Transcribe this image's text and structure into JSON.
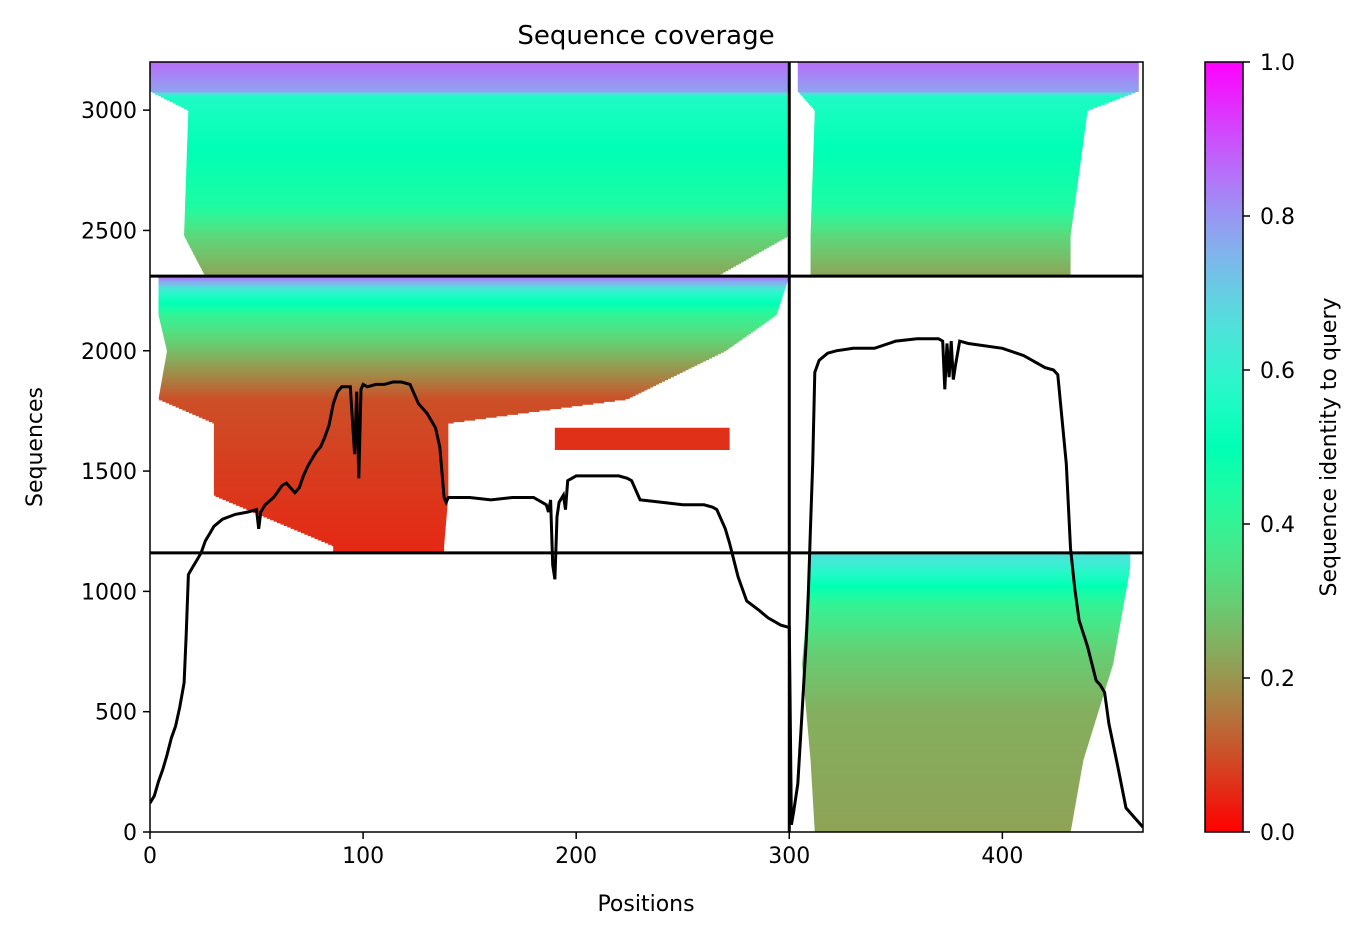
{
  "chart_data": {
    "type": "heatmap",
    "title": "Sequence coverage",
    "xlabel": "Positions",
    "ylabel": "Sequences",
    "xlim": [
      0,
      466
    ],
    "ylim": [
      0,
      3200
    ],
    "x_ticks": [
      "0",
      "100",
      "200",
      "300",
      "400"
    ],
    "x_tick_values": [
      0,
      100,
      200,
      300,
      400
    ],
    "y_ticks": [
      "0",
      "500",
      "1000",
      "1500",
      "2000",
      "2500",
      "3000"
    ],
    "y_tick_values": [
      0,
      500,
      1000,
      1500,
      2000,
      2500,
      3000
    ],
    "colorbar": {
      "label": "Sequence identity to query",
      "range": [
        0.0,
        1.0
      ],
      "ticks": [
        "0.0",
        "0.2",
        "0.4",
        "0.6",
        "0.8",
        "1.0"
      ],
      "tick_values": [
        0.0,
        0.2,
        0.4,
        0.6,
        0.8,
        1.0
      ],
      "colormap": "rainbow_r"
    },
    "chain_boundaries": {
      "x": [
        300
      ],
      "y": [
        1160,
        2310
      ]
    },
    "blocks": [
      {
        "name": "chain A / group 3",
        "x_range": [
          0,
          300
        ],
        "y_range": [
          2310,
          3200
        ],
        "gradient": [
          [
            2310,
            0.22
          ],
          [
            2480,
            0.32
          ],
          [
            2600,
            0.44
          ],
          [
            3060,
            0.56
          ],
          [
            3080,
            0.78
          ],
          [
            3200,
            0.86
          ]
        ],
        "span": [
          [
            2310,
            26,
            266
          ],
          [
            2480,
            16,
            300
          ],
          [
            3000,
            18,
            300
          ],
          [
            3080,
            0,
            300
          ]
        ]
      },
      {
        "name": "chain B / group 3",
        "x_range": [
          300,
          466
        ],
        "y_range": [
          2310,
          3200
        ],
        "gradient": [
          [
            2310,
            0.22
          ],
          [
            2480,
            0.32
          ],
          [
            2600,
            0.44
          ],
          [
            3060,
            0.56
          ],
          [
            3080,
            0.78
          ],
          [
            3200,
            0.86
          ]
        ],
        "span": [
          [
            2310,
            310,
            432
          ],
          [
            2480,
            310,
            432
          ],
          [
            3000,
            312,
            440
          ],
          [
            3080,
            304,
            464
          ]
        ]
      },
      {
        "name": "chain A / group 2",
        "x_range": [
          0,
          300
        ],
        "y_range": [
          1160,
          2310
        ],
        "gradient": [
          [
            1160,
            0.05
          ],
          [
            1800,
            0.1
          ],
          [
            1950,
            0.22
          ],
          [
            2150,
            0.4
          ],
          [
            2250,
            0.6
          ],
          [
            2310,
            0.86
          ]
        ],
        "span": [
          [
            1190,
            86,
            138
          ],
          [
            1400,
            30,
            140
          ],
          [
            1700,
            30,
            140
          ],
          [
            1800,
            4,
            224
          ],
          [
            2000,
            8,
            270
          ],
          [
            2150,
            4,
            294
          ],
          [
            2310,
            4,
            300
          ]
        ]
      },
      {
        "name": "chain A / group 2 (secondary)",
        "x_range": [
          0,
          300
        ],
        "y_range": [
          1590,
          1680
        ],
        "gradient": [
          [
            1590,
            0.06
          ],
          [
            1680,
            0.06
          ]
        ],
        "span": [
          [
            1590,
            190,
            272
          ],
          [
            1680,
            190,
            272
          ]
        ]
      },
      {
        "name": "chain B / group 1",
        "x_range": [
          300,
          466
        ],
        "y_range": [
          0,
          1160
        ],
        "gradient": [
          [
            0,
            0.22
          ],
          [
            500,
            0.24
          ],
          [
            750,
            0.3
          ],
          [
            950,
            0.4
          ],
          [
            1100,
            0.6
          ],
          [
            1160,
            0.66
          ]
        ],
        "span": [
          [
            0,
            312,
            432
          ],
          [
            300,
            310,
            438
          ],
          [
            700,
            306,
            452
          ],
          [
            1100,
            310,
            460
          ]
        ]
      }
    ],
    "coverage_line": {
      "x": [
        0,
        2,
        4,
        6,
        8,
        10,
        12,
        14,
        16,
        17,
        18,
        20,
        22,
        24,
        26,
        28,
        30,
        34,
        40,
        46,
        50,
        51,
        52,
        54,
        58,
        62,
        64,
        66,
        68,
        70,
        72,
        74,
        76,
        78,
        80,
        82,
        84,
        86,
        88,
        90,
        94,
        96,
        97,
        98,
        99,
        100,
        102,
        106,
        110,
        114,
        118,
        122,
        126,
        130,
        134,
        136,
        138,
        139,
        140,
        150,
        160,
        170,
        180,
        186,
        187,
        188,
        189,
        190,
        191,
        192,
        194,
        195,
        196,
        198,
        200,
        210,
        220,
        224,
        226,
        230,
        240,
        250,
        260,
        264,
        266,
        268,
        270,
        272,
        276,
        280,
        286,
        290,
        296,
        300,
        301,
        302,
        304,
        306,
        308,
        309,
        310,
        311,
        312,
        314,
        318,
        322,
        330,
        340,
        350,
        360,
        370,
        372,
        373,
        374,
        375,
        376,
        377,
        378,
        380,
        384,
        400,
        410,
        420,
        424,
        426,
        430,
        432,
        434,
        436,
        440,
        444,
        446,
        448,
        450,
        454,
        458,
        462,
        466
      ],
      "y": [
        120,
        150,
        210,
        260,
        320,
        390,
        440,
        520,
        620,
        820,
        1070,
        1100,
        1130,
        1160,
        1210,
        1240,
        1270,
        1300,
        1320,
        1330,
        1340,
        1260,
        1330,
        1360,
        1390,
        1440,
        1450,
        1430,
        1410,
        1430,
        1480,
        1520,
        1550,
        1580,
        1600,
        1640,
        1690,
        1780,
        1830,
        1850,
        1850,
        1570,
        1830,
        1470,
        1840,
        1860,
        1850,
        1860,
        1860,
        1870,
        1870,
        1860,
        1780,
        1740,
        1680,
        1600,
        1390,
        1370,
        1390,
        1390,
        1380,
        1390,
        1390,
        1360,
        1330,
        1380,
        1110,
        1050,
        1310,
        1370,
        1400,
        1340,
        1460,
        1470,
        1480,
        1480,
        1480,
        1470,
        1460,
        1380,
        1370,
        1360,
        1360,
        1350,
        1340,
        1300,
        1260,
        1200,
        1060,
        960,
        920,
        890,
        860,
        850,
        30,
        80,
        200,
        500,
        800,
        1000,
        1280,
        1530,
        1910,
        1960,
        1990,
        2000,
        2010,
        2010,
        2040,
        2050,
        2050,
        2040,
        1840,
        2030,
        1890,
        2040,
        1880,
        1940,
        2040,
        2030,
        2010,
        1980,
        1930,
        1920,
        1900,
        1530,
        1180,
        1010,
        880,
        770,
        630,
        610,
        580,
        450,
        280,
        100,
        60,
        20
      ]
    }
  }
}
